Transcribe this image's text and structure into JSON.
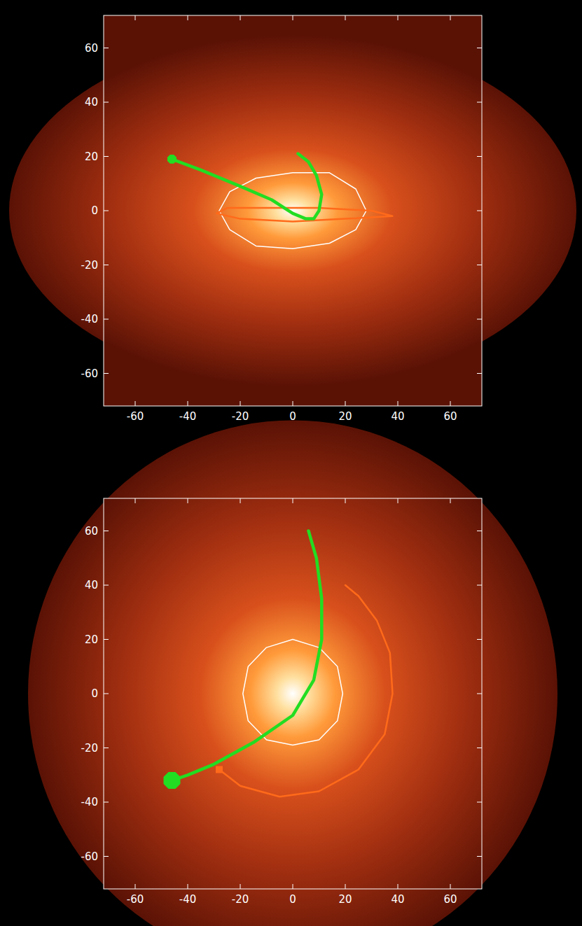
{
  "chart_data": [
    {
      "type": "line",
      "xlim": [
        -72,
        72
      ],
      "ylim": [
        -72,
        72
      ],
      "xticks": [
        -60,
        -40,
        -20,
        0,
        20,
        40,
        60
      ],
      "yticks": [
        -60,
        -40,
        -20,
        0,
        20,
        40,
        60
      ],
      "grid": false,
      "series": [
        {
          "color": "#ffffff",
          "line_style": "solid",
          "x": [
            -28,
            -24,
            -14,
            0,
            14,
            24,
            28,
            24,
            14,
            0,
            -14,
            -24,
            -28
          ],
          "values": [
            0,
            7,
            12,
            14,
            14,
            8,
            0,
            -7,
            -12,
            -14,
            -13,
            -7,
            0
          ]
        },
        {
          "color": "#ff6a1a",
          "line_style": "solid",
          "x": [
            -29,
            -20,
            0,
            20,
            38,
            30,
            10,
            -10,
            -25,
            -29
          ],
          "values": [
            -1,
            -3,
            -4,
            -3,
            -2,
            0,
            1,
            1,
            1,
            -1
          ]
        },
        {
          "color": "#22dd22",
          "line_style": "solid",
          "x": [
            -46,
            -35,
            -20,
            -8,
            0,
            5,
            8,
            10,
            11,
            9,
            6,
            2
          ],
          "values": [
            19,
            15,
            9,
            4,
            -1,
            -3,
            -3,
            0,
            6,
            13,
            18,
            21
          ]
        },
        {
          "type": "scatter",
          "color": "#22dd22",
          "marker": "octagon",
          "x": [
            -46
          ],
          "values": [
            19
          ]
        }
      ]
    },
    {
      "type": "line",
      "xlim": [
        -72,
        72
      ],
      "ylim": [
        -72,
        72
      ],
      "xticks": [
        -60,
        -40,
        -20,
        0,
        20,
        40,
        60
      ],
      "yticks": [
        -60,
        -40,
        -20,
        0,
        20,
        40,
        60
      ],
      "grid": false,
      "series": [
        {
          "color": "#ffffff",
          "line_style": "solid",
          "x": [
            0,
            10,
            17,
            19,
            17,
            10,
            0,
            -10,
            -17,
            -19,
            -17,
            -10,
            0
          ],
          "values": [
            20,
            17,
            10,
            0,
            -10,
            -17,
            -19,
            -17,
            -10,
            0,
            10,
            17,
            20
          ]
        },
        {
          "color": "#ff6a1a",
          "line_style": "solid",
          "x": [
            -28,
            -20,
            -5,
            10,
            25,
            35,
            38,
            37,
            32,
            25,
            20
          ],
          "values": [
            -28,
            -34,
            -38,
            -36,
            -28,
            -15,
            0,
            15,
            27,
            36,
            40
          ]
        },
        {
          "type": "scatter",
          "color": "#ff6a1a",
          "marker": "square",
          "x": [
            -28
          ],
          "values": [
            -28
          ]
        },
        {
          "color": "#22dd22",
          "line_style": "solid",
          "x": [
            -46,
            -40,
            -30,
            -15,
            0,
            8,
            11,
            11,
            9,
            6
          ],
          "values": [
            -32,
            -30,
            -26,
            -18,
            -8,
            5,
            20,
            35,
            50,
            60
          ]
        },
        {
          "type": "scatter",
          "color": "#22dd22",
          "marker": "octagon",
          "x": [
            -46
          ],
          "values": [
            -32
          ]
        }
      ]
    }
  ]
}
